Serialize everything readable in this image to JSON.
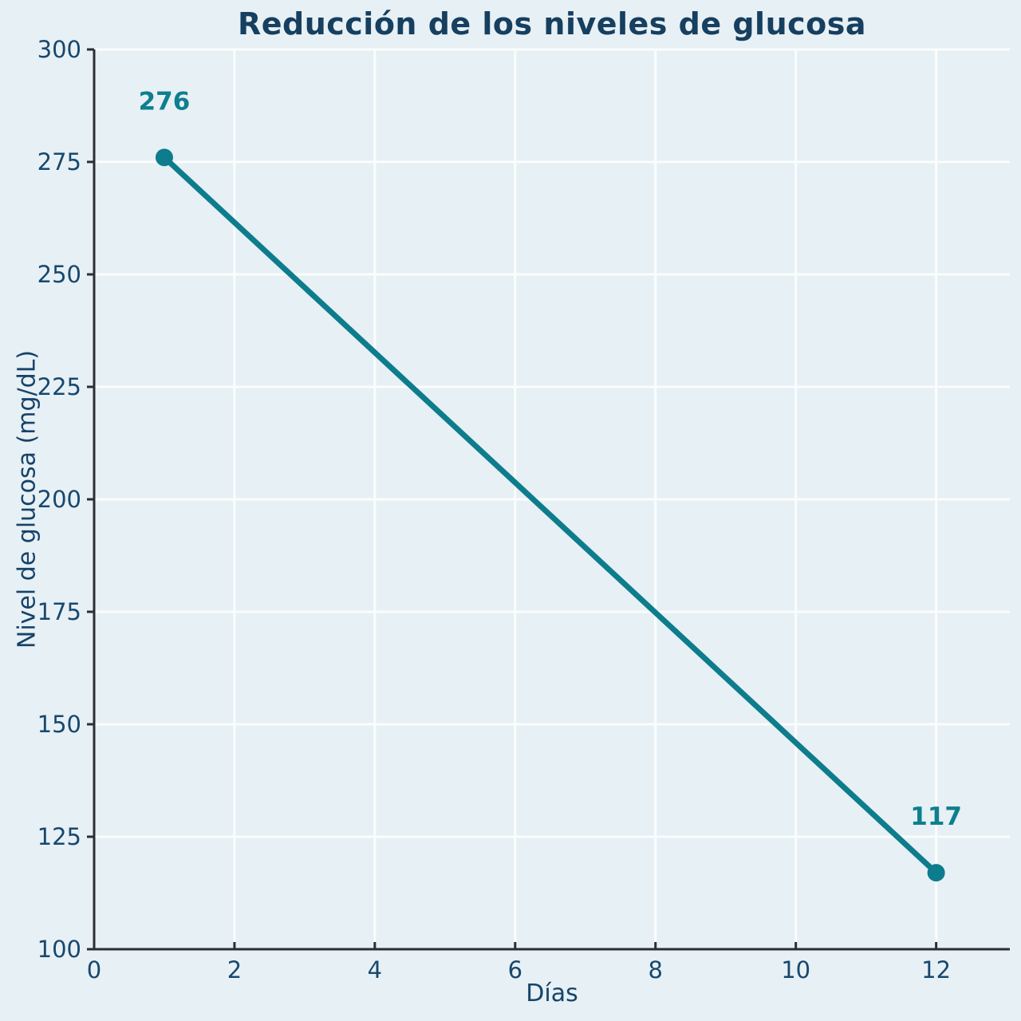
{
  "chart_data": {
    "type": "line",
    "title": "Reducción de los niveles de glucosa",
    "xlabel": "Días",
    "ylabel": "Nivel de glucosa (mg/dL)",
    "x": [
      1,
      12
    ],
    "y": [
      276,
      117
    ],
    "point_labels": [
      "276",
      "117"
    ],
    "xlim": [
      0,
      13.05
    ],
    "ylim": [
      100,
      300
    ],
    "xticks": [
      0,
      2,
      4,
      6,
      8,
      10,
      12
    ],
    "yticks": [
      100,
      125,
      150,
      175,
      200,
      225,
      250,
      275,
      300
    ],
    "grid": true,
    "legend": false,
    "colors": {
      "line": "#0d7c8d",
      "marker": "#0d7c8d",
      "annotation": "#0d7f8f",
      "grid": "#fafdfd",
      "spine": "#2a2f33",
      "tick_label": "#17486f",
      "title": "#163f60",
      "axis_label": "#16436a",
      "background": "#e7f0f4"
    }
  }
}
